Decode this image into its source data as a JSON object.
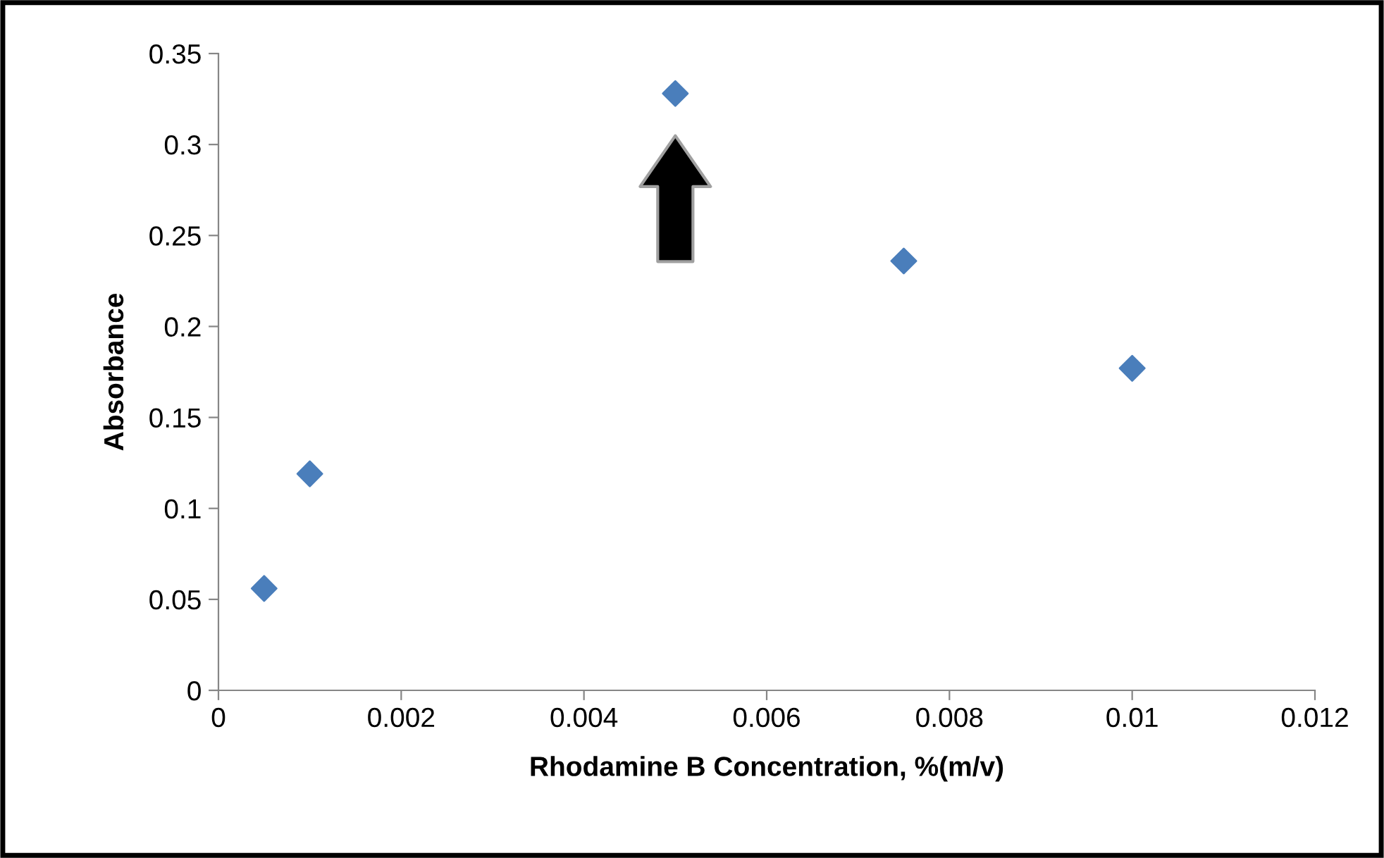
{
  "chart_data": {
    "type": "scatter",
    "xlabel": "Rhodamine B Concentration, %(m/v)",
    "ylabel": "Absorbance",
    "x": [
      0.0005,
      0.001,
      0.005,
      0.0075,
      0.01
    ],
    "series": [
      {
        "color": "#4a7ebb",
        "values": [
          0.056,
          0.119,
          0.328,
          0.236,
          0.177
        ]
      }
    ],
    "marker": "diamond",
    "grid": false,
    "legend": false,
    "xlim": [
      0,
      0.012
    ],
    "xticks": [
      0,
      0.002,
      0.004,
      0.006,
      0.008,
      0.01,
      0.012
    ],
    "ylim": [
      0,
      0.35
    ],
    "yticks": [
      0,
      0.05,
      0.1,
      0.15,
      0.2,
      0.25,
      0.3,
      0.35
    ]
  }
}
